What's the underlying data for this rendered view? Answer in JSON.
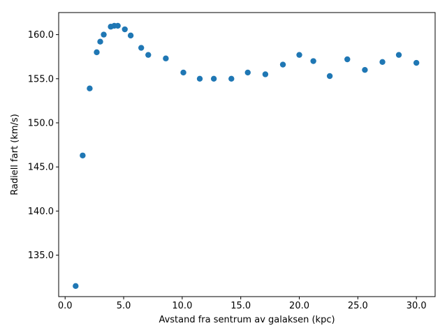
{
  "chart_data": {
    "type": "scatter",
    "title": "",
    "xlabel": "Avstand fra sentrum av galaksen (kpc)",
    "ylabel": "Radiell fart (km/s)",
    "xlim": [
      -0.55,
      31.6
    ],
    "ylim": [
      130.3,
      162.5
    ],
    "xticks": [
      0.0,
      5.0,
      10.0,
      15.0,
      20.0,
      25.0,
      30.0
    ],
    "xtick_labels": [
      "0.0",
      "5.0",
      "10.0",
      "15.0",
      "20.0",
      "25.0",
      "30.0"
    ],
    "yticks": [
      135.0,
      140.0,
      145.0,
      150.0,
      155.0,
      160.0
    ],
    "ytick_labels": [
      "135.0",
      "140.0",
      "145.0",
      "150.0",
      "155.0",
      "160.0"
    ],
    "grid": false,
    "marker_color": "#1f77b4",
    "series": [
      {
        "x": [
          0.9,
          1.5,
          2.1,
          2.7,
          3.0,
          3.3,
          3.9,
          4.2,
          4.5,
          5.1,
          5.6,
          6.5,
          7.1,
          8.6,
          10.1,
          11.5,
          12.7,
          14.2,
          15.6,
          17.1,
          18.6,
          20.0,
          21.2,
          22.6,
          24.1,
          25.6,
          27.1,
          28.5,
          30.0
        ],
        "y": [
          131.5,
          146.3,
          153.9,
          158.0,
          159.2,
          160.0,
          160.9,
          161.0,
          161.0,
          160.6,
          159.9,
          158.5,
          157.7,
          157.3,
          155.7,
          155.0,
          155.0,
          155.0,
          155.7,
          155.5,
          156.6,
          157.7,
          157.0,
          155.3,
          157.2,
          156.0,
          156.9,
          157.7,
          156.8
        ]
      }
    ]
  }
}
